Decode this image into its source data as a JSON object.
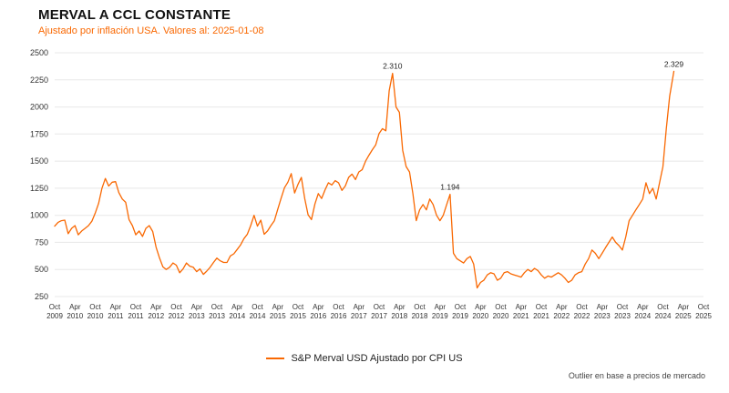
{
  "header": {
    "title": "MERVAL A CCL CONSTANTE",
    "subtitle": "Ajustado por inflación USA. Valores al: 2025-01-08"
  },
  "legend": {
    "label": "S&P Merval USD Ajustado por CPI US"
  },
  "footnote": "Outlier en base a precios de mercado",
  "colors": {
    "accent": "#F96802",
    "grid": "#e8e8e8",
    "axis_text": "#333333",
    "annotation_text": "#222222"
  },
  "chart_data": {
    "type": "line",
    "title": "MERVAL A CCL CONSTANTE",
    "subtitle": "Ajustado por inflación USA. Valores al: 2025-01-08",
    "xlabel": "",
    "ylabel": "",
    "grid": "horizontal",
    "legend_position": "bottom-center",
    "ylim": [
      250,
      2500
    ],
    "yticks": [
      250,
      500,
      750,
      1000,
      1250,
      1500,
      1750,
      2000,
      2250,
      2500
    ],
    "xlim": [
      2009.75,
      2025.75
    ],
    "xticks": [
      [
        "Oct",
        "2009"
      ],
      [
        "Apr",
        "2010"
      ],
      [
        "Oct",
        "2010"
      ],
      [
        "Apr",
        "2011"
      ],
      [
        "Oct",
        "2011"
      ],
      [
        "Apr",
        "2012"
      ],
      [
        "Oct",
        "2012"
      ],
      [
        "Apr",
        "2013"
      ],
      [
        "Oct",
        "2013"
      ],
      [
        "Apr",
        "2014"
      ],
      [
        "Oct",
        "2014"
      ],
      [
        "Apr",
        "2015"
      ],
      [
        "Oct",
        "2015"
      ],
      [
        "Apr",
        "2016"
      ],
      [
        "Oct",
        "2016"
      ],
      [
        "Apr",
        "2017"
      ],
      [
        "Oct",
        "2017"
      ],
      [
        "Apr",
        "2018"
      ],
      [
        "Oct",
        "2018"
      ],
      [
        "Apr",
        "2019"
      ],
      [
        "Oct",
        "2019"
      ],
      [
        "Apr",
        "2020"
      ],
      [
        "Oct",
        "2020"
      ],
      [
        "Apr",
        "2021"
      ],
      [
        "Oct",
        "2021"
      ],
      [
        "Apr",
        "2022"
      ],
      [
        "Oct",
        "2022"
      ],
      [
        "Apr",
        "2023"
      ],
      [
        "Oct",
        "2023"
      ],
      [
        "Apr",
        "2024"
      ],
      [
        "Oct",
        "2024"
      ],
      [
        "Apr",
        "2025"
      ],
      [
        "Oct",
        "2025"
      ]
    ],
    "annotations": [
      {
        "x": 2018.083,
        "y": 2310,
        "label": "2.310"
      },
      {
        "x": 2019.5,
        "y": 1194,
        "label": "1.194"
      },
      {
        "x": 2025.02,
        "y": 2329,
        "label": "2.329"
      }
    ],
    "series": [
      {
        "name": "S&P Merval USD Ajustado por CPI US",
        "color": "#F96802",
        "points": [
          [
            2009.75,
            900
          ],
          [
            2009.833,
            935
          ],
          [
            2009.917,
            950
          ],
          [
            2010,
            955
          ],
          [
            2010.083,
            830
          ],
          [
            2010.167,
            880
          ],
          [
            2010.25,
            905
          ],
          [
            2010.333,
            820
          ],
          [
            2010.417,
            855
          ],
          [
            2010.5,
            880
          ],
          [
            2010.583,
            905
          ],
          [
            2010.667,
            945
          ],
          [
            2010.75,
            1020
          ],
          [
            2010.833,
            1110
          ],
          [
            2010.917,
            1250
          ],
          [
            2011,
            1340
          ],
          [
            2011.083,
            1270
          ],
          [
            2011.167,
            1305
          ],
          [
            2011.25,
            1310
          ],
          [
            2011.333,
            1210
          ],
          [
            2011.417,
            1150
          ],
          [
            2011.5,
            1120
          ],
          [
            2011.583,
            960
          ],
          [
            2011.667,
            905
          ],
          [
            2011.75,
            820
          ],
          [
            2011.833,
            855
          ],
          [
            2011.917,
            805
          ],
          [
            2012,
            880
          ],
          [
            2012.083,
            905
          ],
          [
            2012.167,
            850
          ],
          [
            2012.25,
            705
          ],
          [
            2012.333,
            610
          ],
          [
            2012.417,
            525
          ],
          [
            2012.5,
            500
          ],
          [
            2012.583,
            520
          ],
          [
            2012.667,
            560
          ],
          [
            2012.75,
            540
          ],
          [
            2012.833,
            470
          ],
          [
            2012.917,
            505
          ],
          [
            2013,
            560
          ],
          [
            2013.083,
            530
          ],
          [
            2013.167,
            520
          ],
          [
            2013.25,
            480
          ],
          [
            2013.333,
            505
          ],
          [
            2013.417,
            455
          ],
          [
            2013.5,
            485
          ],
          [
            2013.583,
            520
          ],
          [
            2013.667,
            565
          ],
          [
            2013.75,
            605
          ],
          [
            2013.833,
            580
          ],
          [
            2013.917,
            565
          ],
          [
            2014,
            565
          ],
          [
            2014.083,
            625
          ],
          [
            2014.167,
            645
          ],
          [
            2014.25,
            685
          ],
          [
            2014.333,
            725
          ],
          [
            2014.417,
            785
          ],
          [
            2014.5,
            825
          ],
          [
            2014.583,
            905
          ],
          [
            2014.667,
            1000
          ],
          [
            2014.75,
            900
          ],
          [
            2014.833,
            955
          ],
          [
            2014.917,
            825
          ],
          [
            2015,
            855
          ],
          [
            2015.083,
            905
          ],
          [
            2015.167,
            950
          ],
          [
            2015.25,
            1055
          ],
          [
            2015.333,
            1155
          ],
          [
            2015.417,
            1255
          ],
          [
            2015.5,
            1305
          ],
          [
            2015.583,
            1385
          ],
          [
            2015.667,
            1205
          ],
          [
            2015.75,
            1285
          ],
          [
            2015.833,
            1350
          ],
          [
            2015.917,
            1155
          ],
          [
            2016,
            1005
          ],
          [
            2016.083,
            960
          ],
          [
            2016.167,
            1105
          ],
          [
            2016.25,
            1200
          ],
          [
            2016.333,
            1155
          ],
          [
            2016.417,
            1235
          ],
          [
            2016.5,
            1300
          ],
          [
            2016.583,
            1280
          ],
          [
            2016.667,
            1320
          ],
          [
            2016.75,
            1300
          ],
          [
            2016.833,
            1230
          ],
          [
            2016.917,
            1270
          ],
          [
            2017,
            1350
          ],
          [
            2017.083,
            1380
          ],
          [
            2017.167,
            1330
          ],
          [
            2017.25,
            1400
          ],
          [
            2017.333,
            1420
          ],
          [
            2017.417,
            1500
          ],
          [
            2017.5,
            1555
          ],
          [
            2017.583,
            1605
          ],
          [
            2017.667,
            1650
          ],
          [
            2017.75,
            1755
          ],
          [
            2017.833,
            1800
          ],
          [
            2017.917,
            1780
          ],
          [
            2018,
            2150
          ],
          [
            2018.083,
            2310
          ],
          [
            2018.167,
            2000
          ],
          [
            2018.25,
            1950
          ],
          [
            2018.333,
            1600
          ],
          [
            2018.417,
            1450
          ],
          [
            2018.5,
            1400
          ],
          [
            2018.583,
            1200
          ],
          [
            2018.667,
            950
          ],
          [
            2018.75,
            1050
          ],
          [
            2018.833,
            1100
          ],
          [
            2018.917,
            1050
          ],
          [
            2019,
            1150
          ],
          [
            2019.083,
            1100
          ],
          [
            2019.167,
            1000
          ],
          [
            2019.25,
            950
          ],
          [
            2019.333,
            1000
          ],
          [
            2019.417,
            1100
          ],
          [
            2019.5,
            1194
          ],
          [
            2019.583,
            650
          ],
          [
            2019.667,
            600
          ],
          [
            2019.75,
            580
          ],
          [
            2019.833,
            560
          ],
          [
            2019.917,
            600
          ],
          [
            2020,
            620
          ],
          [
            2020.083,
            550
          ],
          [
            2020.167,
            330
          ],
          [
            2020.25,
            380
          ],
          [
            2020.333,
            400
          ],
          [
            2020.417,
            450
          ],
          [
            2020.5,
            470
          ],
          [
            2020.583,
            460
          ],
          [
            2020.667,
            400
          ],
          [
            2020.75,
            420
          ],
          [
            2020.833,
            470
          ],
          [
            2020.917,
            480
          ],
          [
            2021,
            460
          ],
          [
            2021.083,
            450
          ],
          [
            2021.167,
            440
          ],
          [
            2021.25,
            430
          ],
          [
            2021.333,
            470
          ],
          [
            2021.417,
            500
          ],
          [
            2021.5,
            480
          ],
          [
            2021.583,
            510
          ],
          [
            2021.667,
            490
          ],
          [
            2021.75,
            450
          ],
          [
            2021.833,
            420
          ],
          [
            2021.917,
            440
          ],
          [
            2022,
            430
          ],
          [
            2022.083,
            450
          ],
          [
            2022.167,
            470
          ],
          [
            2022.25,
            450
          ],
          [
            2022.333,
            420
          ],
          [
            2022.417,
            380
          ],
          [
            2022.5,
            400
          ],
          [
            2022.583,
            450
          ],
          [
            2022.667,
            470
          ],
          [
            2022.75,
            480
          ],
          [
            2022.833,
            550
          ],
          [
            2022.917,
            600
          ],
          [
            2023,
            680
          ],
          [
            2023.083,
            650
          ],
          [
            2023.167,
            600
          ],
          [
            2023.25,
            650
          ],
          [
            2023.333,
            700
          ],
          [
            2023.417,
            750
          ],
          [
            2023.5,
            800
          ],
          [
            2023.583,
            750
          ],
          [
            2023.667,
            720
          ],
          [
            2023.75,
            680
          ],
          [
            2023.833,
            800
          ],
          [
            2023.917,
            950
          ],
          [
            2024,
            1000
          ],
          [
            2024.083,
            1050
          ],
          [
            2024.167,
            1100
          ],
          [
            2024.25,
            1150
          ],
          [
            2024.333,
            1300
          ],
          [
            2024.417,
            1200
          ],
          [
            2024.5,
            1250
          ],
          [
            2024.583,
            1150
          ],
          [
            2024.667,
            1300
          ],
          [
            2024.75,
            1450
          ],
          [
            2024.833,
            1800
          ],
          [
            2024.917,
            2100
          ],
          [
            2025.02,
            2329
          ]
        ]
      }
    ]
  }
}
